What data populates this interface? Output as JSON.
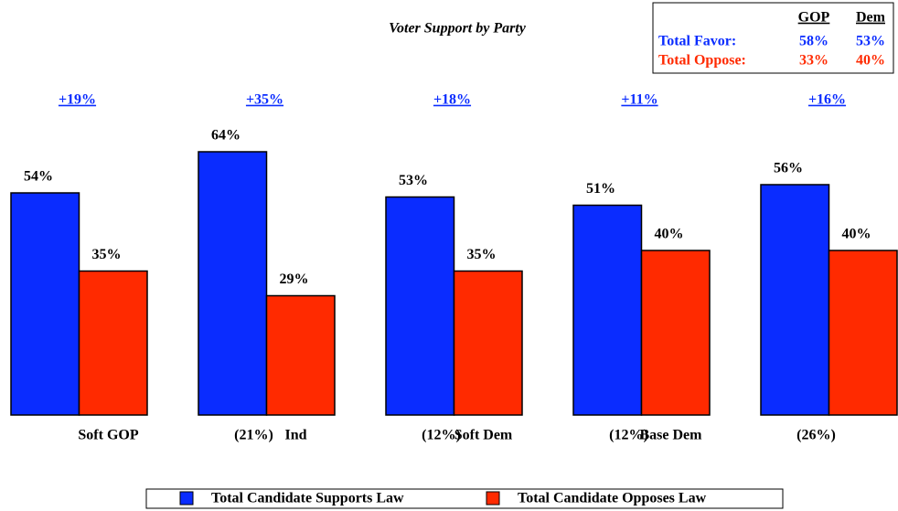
{
  "chart_data": {
    "type": "bar",
    "title": "Voter Support by Party",
    "categories": [
      "Soft GOP",
      "Ind",
      "Soft Dem",
      "Base Dem",
      null
    ],
    "category_notes": [
      null,
      "(21%)",
      "(12%)",
      "(12%)",
      "(26%)"
    ],
    "annotations": [
      "+19%",
      "+35%",
      "+18%",
      "+11%",
      "+16%"
    ],
    "series": [
      {
        "name": "Total Candidate Supports Law",
        "color": "#0a2cff",
        "values": [
          54,
          64,
          53,
          51,
          56
        ],
        "value_labels": [
          "54%",
          "64%",
          "53%",
          "51%",
          "56%"
        ]
      },
      {
        "name": "Total Candidate Opposes Law",
        "color": "#ff2a00",
        "values": [
          35,
          29,
          35,
          40,
          40
        ],
        "value_labels": [
          "35%",
          "29%",
          "35%",
          "40%",
          "40%"
        ]
      }
    ],
    "ylim": [
      0,
      100
    ],
    "legend": "bottom",
    "summary": {
      "columns": [
        "GOP",
        "Dem"
      ],
      "rows": [
        {
          "label": "Total Favor:",
          "values": [
            "58%",
            "53%"
          ],
          "color": "#0a2cff"
        },
        {
          "label": "Total Oppose:",
          "values": [
            "33%",
            "40%"
          ],
          "color": "#ff2a00"
        }
      ]
    }
  }
}
